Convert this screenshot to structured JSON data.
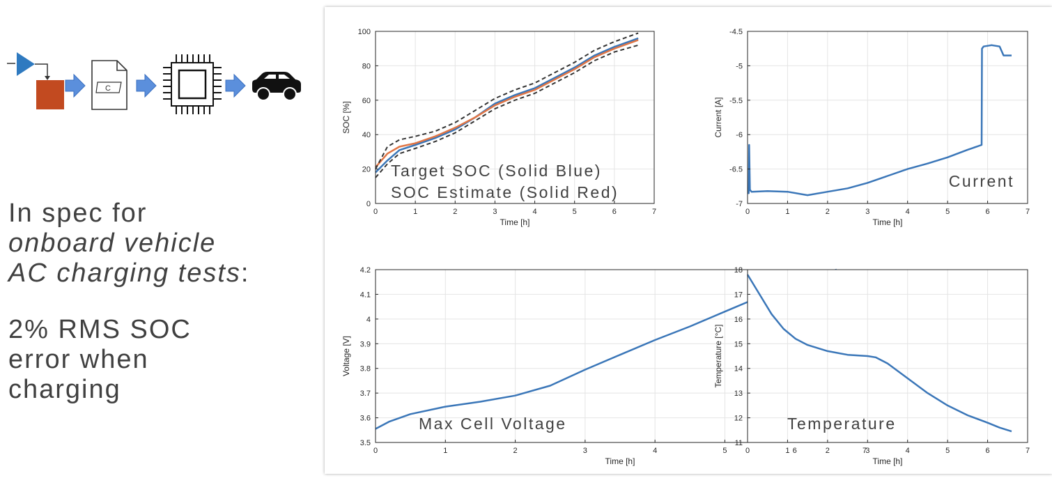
{
  "left": {
    "flow_icons": [
      "simulink-block-icon",
      "arrow-icon",
      "c-code-file-icon",
      "arrow-icon",
      "microchip-icon",
      "arrow-icon",
      "car-icon"
    ],
    "c_file_label": "C",
    "spec_line1": "In spec for",
    "spec_line2": "onboard vehicle",
    "spec_line3": "AC charging tests",
    "spec_colon": ":",
    "error_text": "2% RMS SOC error when charging"
  },
  "colors": {
    "blue": "#3a76b8",
    "red": "#e07545",
    "bound": "#333333",
    "grid": "#e4e4e4"
  },
  "chart_data": [
    {
      "id": "soc",
      "type": "line",
      "xlabel": "Time [h]",
      "ylabel": "SOC [%]",
      "xlim": [
        0,
        7
      ],
      "ylim": [
        0,
        100
      ],
      "xticks": [
        0,
        1,
        2,
        3,
        4,
        5,
        6,
        7
      ],
      "yticks": [
        0,
        20,
        40,
        60,
        80,
        100
      ],
      "grid": true,
      "annotation": [
        "Target SOC (Solid Blue)",
        "SOC Estimate (Solid Red)"
      ],
      "annotation_position": "bottom",
      "series": [
        {
          "color": "#3a76b8",
          "style": "solid",
          "x": [
            0,
            0.3,
            0.6,
            1,
            1.5,
            2,
            2.5,
            3,
            3.5,
            4,
            4.5,
            5,
            5.5,
            6,
            6.6
          ],
          "y": [
            18,
            25,
            31,
            34,
            38,
            43,
            50,
            58,
            63,
            67,
            73,
            79,
            86,
            91,
            96
          ]
        },
        {
          "color": "#e07545",
          "style": "solid",
          "x": [
            0,
            0.3,
            0.6,
            1,
            1.5,
            2,
            2.5,
            3,
            3.5,
            4,
            4.5,
            5,
            5.5,
            6,
            6.6
          ],
          "y": [
            21,
            29,
            33,
            35,
            39,
            44,
            50,
            57,
            62,
            66,
            72,
            78,
            85,
            90,
            95
          ]
        },
        {
          "color": "#333333",
          "style": "dashed",
          "x": [
            0,
            0.3,
            0.6,
            1,
            1.5,
            2,
            2.5,
            3,
            3.5,
            4,
            4.5,
            5,
            5.5,
            6,
            6.6
          ],
          "y": [
            15,
            23,
            29,
            32,
            36,
            41,
            48,
            55,
            60,
            64,
            70,
            76,
            83,
            88,
            92
          ]
        },
        {
          "color": "#333333",
          "style": "dashed",
          "x": [
            0,
            0.3,
            0.6,
            1,
            1.5,
            2,
            2.5,
            3,
            3.5,
            4,
            4.5,
            5,
            5.5,
            6,
            6.6
          ],
          "y": [
            20,
            33,
            37,
            39,
            42,
            47,
            54,
            61,
            66,
            70,
            76,
            82,
            89,
            94,
            99
          ]
        }
      ]
    },
    {
      "id": "current",
      "type": "line",
      "xlabel": "Time [h]",
      "ylabel": "Current [A]",
      "xlim": [
        0,
        7
      ],
      "ylim": [
        -7,
        -4.5
      ],
      "xticks": [
        0,
        1,
        2,
        3,
        4,
        5,
        6,
        7
      ],
      "yticks": [
        -7,
        -6.5,
        -6,
        -5.5,
        -5,
        -4.5
      ],
      "grid": true,
      "annotation": [
        "Current"
      ],
      "annotation_position": "bottom-right",
      "series": [
        {
          "color": "#3a76b8",
          "style": "solid",
          "x": [
            0,
            0.03,
            0.04,
            0.06,
            0.1,
            0.5,
            1.0,
            1.5,
            2.0,
            2.5,
            3.0,
            3.5,
            4.0,
            4.5,
            5.0,
            5.5,
            5.85,
            5.86,
            5.9,
            6.1,
            6.3,
            6.4,
            6.6
          ],
          "y": [
            -6.85,
            -6.85,
            -6.15,
            -6.8,
            -6.83,
            -6.82,
            -6.83,
            -6.88,
            -6.83,
            -6.78,
            -6.7,
            -6.6,
            -6.5,
            -6.42,
            -6.33,
            -6.22,
            -6.15,
            -4.75,
            -4.72,
            -4.7,
            -4.72,
            -4.85,
            -4.85
          ]
        }
      ]
    },
    {
      "id": "voltage",
      "type": "line",
      "xlabel": "Time [h]",
      "ylabel": "Voltage [V]",
      "xlim": [
        0,
        7
      ],
      "ylim": [
        3.5,
        4.2
      ],
      "xticks": [
        0,
        1,
        2,
        3,
        4,
        5,
        6,
        7
      ],
      "yticks": [
        3.5,
        3.6,
        3.7,
        3.8,
        3.9,
        4,
        4.1,
        4.2
      ],
      "grid": true,
      "annotation": [
        "Max Cell Voltage"
      ],
      "annotation_position": "bottom",
      "series": [
        {
          "color": "#3a76b8",
          "style": "solid",
          "x": [
            0,
            0.2,
            0.5,
            1,
            1.5,
            2,
            2.5,
            3,
            3.5,
            4,
            4.5,
            5,
            5.5,
            5.8,
            6,
            6.6
          ],
          "y": [
            3.555,
            3.585,
            3.615,
            3.645,
            3.665,
            3.69,
            3.73,
            3.795,
            3.855,
            3.915,
            3.97,
            4.03,
            4.09,
            4.135,
            4.15,
            4.2
          ]
        }
      ]
    },
    {
      "id": "temperature",
      "type": "line",
      "xlabel": "Time [h]",
      "ylabel": "Temperature [°C]",
      "xlim": [
        0,
        7
      ],
      "ylim": [
        11,
        18
      ],
      "xticks": [
        0,
        1,
        2,
        3,
        4,
        5,
        6,
        7
      ],
      "yticks": [
        11,
        12,
        13,
        14,
        15,
        16,
        17,
        18
      ],
      "grid": true,
      "annotation": [
        "Temperature"
      ],
      "annotation_position": "bottom",
      "series": [
        {
          "color": "#3a76b8",
          "style": "solid",
          "x": [
            0,
            0.3,
            0.6,
            0.9,
            1.2,
            1.5,
            2,
            2.5,
            3,
            3.2,
            3.5,
            4,
            4.5,
            5,
            5.5,
            6,
            6.3,
            6.6
          ],
          "y": [
            17.8,
            17.0,
            16.2,
            15.6,
            15.2,
            14.95,
            14.7,
            14.55,
            14.5,
            14.45,
            14.2,
            13.6,
            13.0,
            12.5,
            12.1,
            11.8,
            11.6,
            11.45
          ]
        }
      ]
    }
  ]
}
